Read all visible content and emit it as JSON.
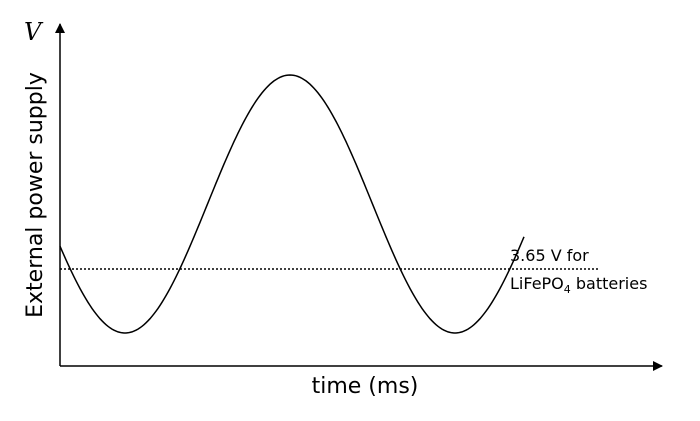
{
  "axes": {
    "y_symbol": "V",
    "y_label": "External power supply",
    "x_label": "time (ms)"
  },
  "annotation": {
    "line1": "3.65 V for",
    "line2": {
      "text": "LiFePO",
      "subscript": "4",
      "rest": " batteries"
    }
  }
}
